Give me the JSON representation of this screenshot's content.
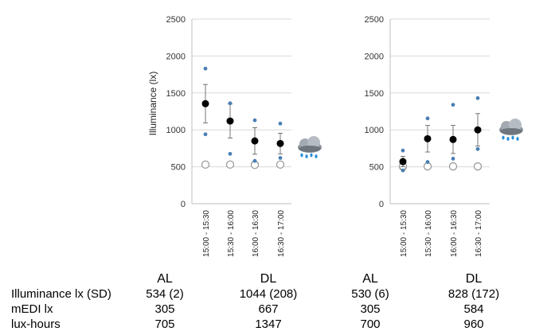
{
  "chart_data": [
    {
      "type": "scatter",
      "ylabel": "Illuminance (lx)",
      "ylim": [
        0,
        2500
      ],
      "yticks": [
        "0",
        "500",
        "1000",
        "1500",
        "2000",
        "2500"
      ],
      "categories": [
        "15:00 - 15:30",
        "15:30 - 16:00",
        "16:00 - 16:30",
        "16:30 - 17:00"
      ],
      "series": [
        {
          "kind": "mean",
          "values": [
            1355,
            1120,
            850,
            815
          ],
          "err": [
            260,
            230,
            180,
            140
          ]
        },
        {
          "kind": "individual",
          "values": [
            [
              1830,
              940
            ],
            [
              1360,
              675
            ],
            [
              1130,
              580
            ],
            [
              1085,
              620
            ]
          ]
        },
        {
          "kind": "reference-open",
          "values": [
            [
              530,
              530
            ],
            [
              530,
              530
            ],
            [
              530,
              525
            ],
            [
              530,
              530
            ]
          ]
        }
      ],
      "weather_icon": "rain-cloud-icon"
    },
    {
      "type": "scatter",
      "ylabel": "",
      "ylim": [
        0,
        2500
      ],
      "yticks": [
        "0",
        "500",
        "1000",
        "1500",
        "2000",
        "2500"
      ],
      "categories": [
        "15:00 - 15:30",
        "15:30 - 16:00",
        "16:00 - 16:30",
        "16:30 - 17:00"
      ],
      "series": [
        {
          "kind": "mean",
          "values": [
            570,
            880,
            870,
            1000
          ],
          "err": [
            70,
            180,
            190,
            220
          ]
        },
        {
          "kind": "individual",
          "values": [
            [
              720,
              450
            ],
            [
              1155,
              565
            ],
            [
              1340,
              610
            ],
            [
              1430,
              740
            ]
          ]
        },
        {
          "kind": "reference-open",
          "values": [
            [
              500,
              510
            ],
            [
              505,
              505
            ],
            [
              505,
              505
            ],
            [
              505,
              505
            ]
          ]
        }
      ],
      "weather_icon": "rain-cloud-icon"
    }
  ],
  "table": {
    "headers": [
      "AL",
      "DL",
      "AL",
      "DL"
    ],
    "rows": [
      {
        "label": "Illuminance lx (SD)",
        "cells": [
          "534 (2)",
          "1044 (208)",
          "530 (6)",
          "828 (172)"
        ]
      },
      {
        "label": "mEDI lx",
        "cells": [
          "305",
          "667",
          "305",
          "584"
        ]
      },
      {
        "label": "lux-hours",
        "cells": [
          "705",
          "1347",
          "700",
          "960"
        ]
      }
    ]
  },
  "colors": {
    "mean": "#000000",
    "individual": "#4a7fb5",
    "reference": "#9a9a9a",
    "grid": "#d9d9d9",
    "axis": "#bfbfbf"
  }
}
